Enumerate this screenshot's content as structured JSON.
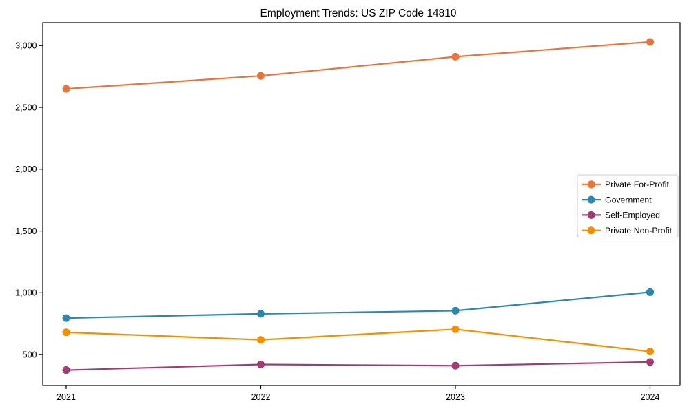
{
  "chart_data": {
    "type": "line",
    "title": "Employment Trends: US ZIP Code 14810",
    "categories": [
      "2021",
      "2022",
      "2023",
      "2024"
    ],
    "series": [
      {
        "name": "Private For-Profit",
        "color": "#E8743B",
        "values": [
          2650,
          2755,
          2910,
          3030
        ]
      },
      {
        "name": "Government",
        "color": "#2E86AB",
        "values": [
          795,
          830,
          855,
          1005
        ]
      },
      {
        "name": "Self-Employed",
        "color": "#A23B72",
        "values": [
          375,
          420,
          410,
          440
        ]
      },
      {
        "name": "Private Non-Profit",
        "color": "#F18F01",
        "values": [
          680,
          620,
          705,
          525
        ]
      }
    ],
    "xlabel": "",
    "ylabel": "",
    "ylim": [
      250,
      3185
    ],
    "yticks": [
      500,
      1000,
      1500,
      2000,
      2500,
      3000
    ],
    "ytick_labels": [
      "500",
      "1,000",
      "1,500",
      "2,000",
      "2,500",
      "3,000"
    ],
    "grid": false,
    "legend_position": "center right",
    "background": "#ffffff",
    "axis_color": "#000000"
  }
}
